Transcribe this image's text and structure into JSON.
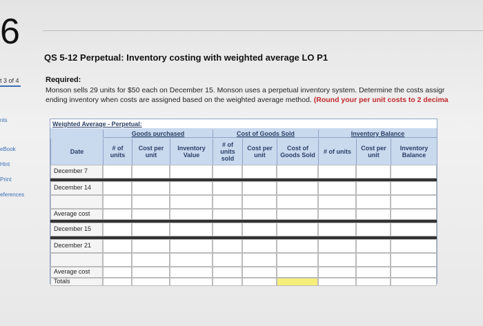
{
  "page_number": "6",
  "title": "QS 5-12 Perpetual: Inventory costing with weighted average LO P1",
  "progress": "t 3 of 4",
  "sidebar": [
    "nts",
    "eBook",
    "Hint",
    "Print",
    "eferences"
  ],
  "required": {
    "heading": "Required:",
    "line1": "Monson sells 29 units for $50 each on December 15. Monson uses a perpetual inventory system. Determine the costs assigr",
    "line2": "ending inventory when costs are assigned based on the weighted average method.",
    "note": "(Round your per unit costs to 2 decima"
  },
  "table": {
    "caption": "Weighted Average - Perpetual:",
    "groups": [
      "Goods purchased",
      "Cost of Goods Sold",
      "Inventory Balance"
    ],
    "columns": [
      "Date",
      "# of units",
      "Cost per unit",
      "Inventory Value",
      "# of units sold",
      "Cost per unit",
      "Cost of Goods Sold",
      "# of units",
      "Cost per unit",
      "Inventory Balance"
    ],
    "rows": [
      "December 7",
      "December 14",
      null,
      "Average cost",
      "December 15",
      "December 21",
      null,
      "Average cost",
      "Totals"
    ]
  }
}
